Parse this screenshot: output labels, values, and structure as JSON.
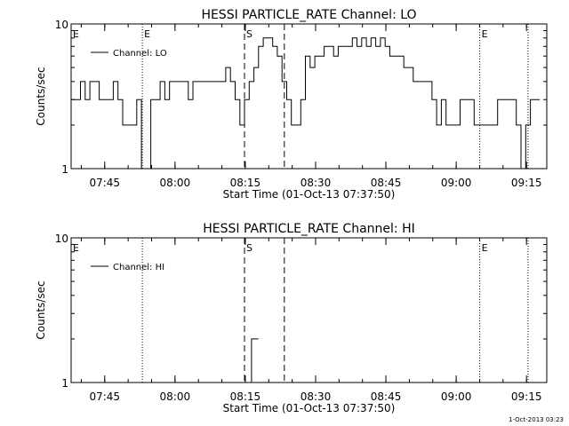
{
  "footer_timestamp": "1-Oct-2013 03:23",
  "chart_data": [
    {
      "type": "line",
      "title": "HESSI PARTICLE_RATE Channel: LO",
      "xlabel": "Start Time (01-Oct-13 07:37:50)",
      "ylabel": "Counts/sec",
      "x_unit": "minutes since 07:37:50",
      "xlim": [
        0,
        101.5
      ],
      "ylim": [
        1,
        10
      ],
      "yscale": "log",
      "ytick_labels": [
        "1",
        "10"
      ],
      "xtick_labels": [
        "07:45",
        "08:00",
        "08:15",
        "08:30",
        "08:45",
        "09:00",
        "09:15"
      ],
      "xticks": [
        7.17,
        22.17,
        37.17,
        52.17,
        67.17,
        82.17,
        97.17
      ],
      "legend": "top-left",
      "series": [
        {
          "name": "Channel: LO",
          "x": [
            0,
            1,
            2,
            3,
            4,
            5,
            6,
            7,
            8,
            9,
            10,
            11,
            12,
            13,
            14,
            15,
            16,
            17,
            18,
            19,
            20,
            21,
            22,
            23,
            24,
            25,
            26,
            27,
            28,
            29,
            30,
            31,
            32,
            33,
            34,
            35,
            36,
            37,
            38,
            39,
            40,
            41,
            42,
            43,
            44,
            45,
            46,
            47,
            48,
            49,
            50,
            51,
            52,
            53,
            54,
            55,
            56,
            57,
            58,
            59,
            60,
            61,
            62,
            63,
            64,
            65,
            66,
            67,
            68,
            69,
            70,
            71,
            72,
            73,
            74,
            75,
            76,
            77,
            78,
            79,
            80,
            81,
            82,
            83,
            84,
            85,
            86,
            87,
            88,
            89,
            90,
            91,
            92,
            93,
            94,
            95,
            96,
            97,
            98,
            99,
            100
          ],
          "values": [
            3,
            3,
            4,
            3,
            4,
            4,
            3,
            3,
            3,
            4,
            3,
            2,
            2,
            2,
            3,
            1,
            1,
            3,
            3,
            4,
            3,
            4,
            4,
            4,
            4,
            3,
            4,
            4,
            4,
            4,
            4,
            4,
            4,
            5,
            4,
            3,
            2,
            3,
            4,
            5,
            7,
            8,
            8,
            7,
            6,
            4,
            3,
            2,
            2,
            3,
            6,
            5,
            6,
            6,
            7,
            7,
            6,
            7,
            7,
            7,
            8,
            7,
            8,
            7,
            8,
            7,
            8,
            7,
            6,
            6,
            6,
            5,
            5,
            4,
            4,
            4,
            4,
            3,
            2,
            3,
            2,
            2,
            2,
            3,
            3,
            3,
            2,
            2,
            2,
            2,
            2,
            3,
            3,
            3,
            3,
            2,
            1,
            2,
            3,
            3,
            3
          ]
        }
      ],
      "vlines": [
        {
          "x": 15.2,
          "style": "dotted",
          "label": "E"
        },
        {
          "x": 37.0,
          "style": "dashed",
          "label": "S"
        },
        {
          "x": 45.5,
          "style": "dashed"
        },
        {
          "x": 87.2,
          "style": "dotted",
          "label": "E"
        },
        {
          "x": 97.5,
          "style": "dotted"
        }
      ],
      "corner_label": "E"
    },
    {
      "type": "line",
      "title": "HESSI PARTICLE_RATE Channel: HI",
      "xlabel": "Start Time (01-Oct-13 07:37:50)",
      "ylabel": "Counts/sec",
      "x_unit": "minutes since 07:37:50",
      "xlim": [
        0,
        101.5
      ],
      "ylim": [
        1,
        10
      ],
      "yscale": "log",
      "ytick_labels": [
        "1",
        "10"
      ],
      "xtick_labels": [
        "07:45",
        "08:00",
        "08:15",
        "08:30",
        "08:45",
        "09:00",
        "09:15"
      ],
      "xticks": [
        7.17,
        22.17,
        37.17,
        52.17,
        67.17,
        82.17,
        97.17
      ],
      "legend": "top-left",
      "series": [
        {
          "name": "Channel: HI",
          "x": [
            37.5,
            38.5,
            38.5,
            40.0
          ],
          "values": [
            1,
            1,
            2,
            2
          ]
        }
      ],
      "vlines": [
        {
          "x": 15.2,
          "style": "dotted"
        },
        {
          "x": 37.0,
          "style": "dashed",
          "label": "S"
        },
        {
          "x": 45.5,
          "style": "dashed"
        },
        {
          "x": 87.2,
          "style": "dotted",
          "label": "E"
        },
        {
          "x": 97.5,
          "style": "dotted"
        }
      ],
      "corner_label": "E"
    }
  ]
}
